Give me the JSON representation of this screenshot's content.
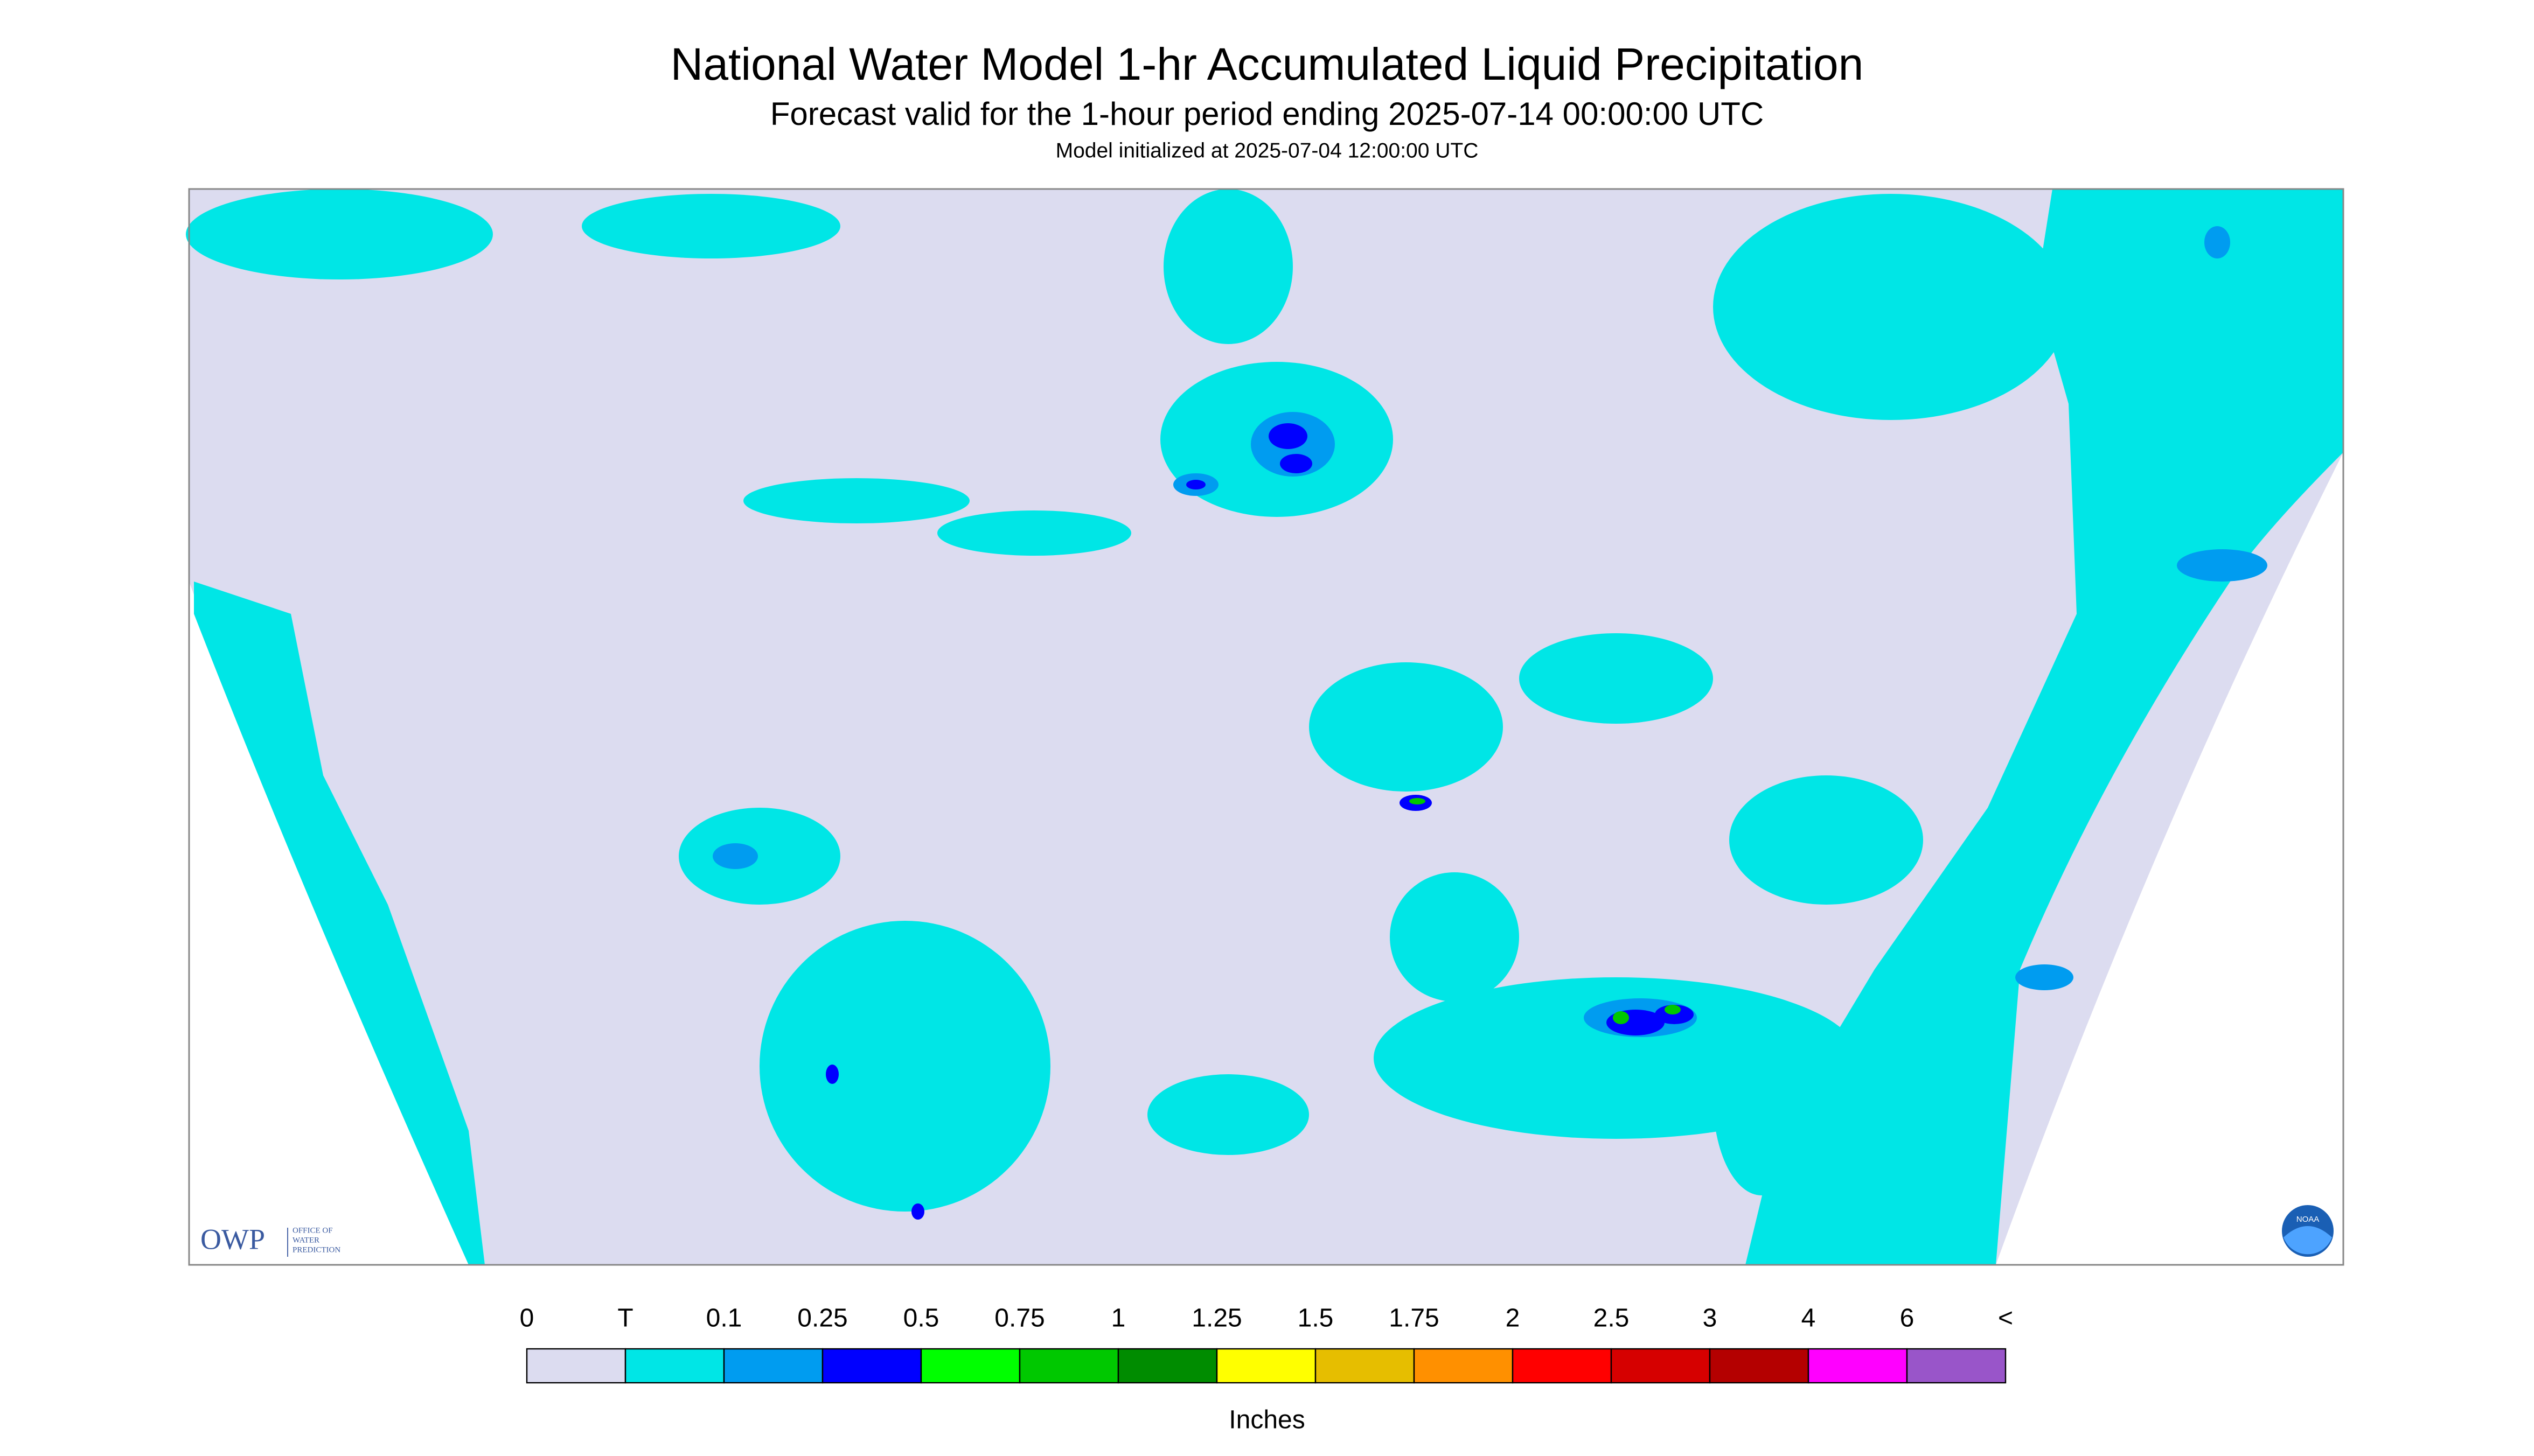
{
  "header": {
    "title": "National Water Model 1-hr Accumulated Liquid Precipitation",
    "subtitle": "Forecast valid for the 1-hour period ending 2025-07-14 00:00:00 UTC",
    "init": "Model initialized at 2025-07-04 12:00:00 UTC"
  },
  "logo": {
    "owp": "OWP",
    "owp_full": [
      "OFFICE OF",
      "WATER",
      "PREDICTION"
    ],
    "noaa": "NOAA"
  },
  "legend": {
    "labels": [
      "0",
      "T",
      "0.1",
      "0.25",
      "0.5",
      "0.75",
      "1",
      "1.25",
      "1.5",
      "1.75",
      "2",
      "2.5",
      "3",
      "4",
      "6",
      "<"
    ],
    "colors": [
      "#dcdcf0",
      "#00e6e6",
      "#009cf0",
      "#0000ff",
      "#00ff00",
      "#00c800",
      "#008c00",
      "#ffff00",
      "#e6be00",
      "#ff9000",
      "#ff0000",
      "#d60000",
      "#b40000",
      "#ff00ff",
      "#9955c9"
    ],
    "unit": "Inches"
  }
}
